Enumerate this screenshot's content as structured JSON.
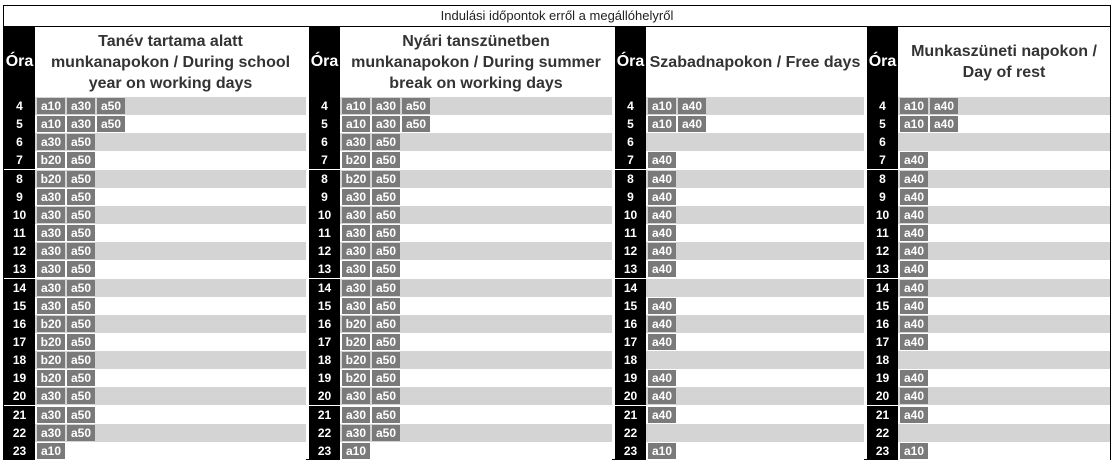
{
  "caption": "Indulási időpontok erről a megállóhelyről",
  "hour_label": "Óra",
  "sections": [
    {
      "title": "Tanév tartama alatt munkanapokon / During school year on working days",
      "rows": [
        {
          "hour": "4",
          "deps": [
            "a10",
            "a30",
            "a50"
          ]
        },
        {
          "hour": "5",
          "deps": [
            "a10",
            "a30",
            "a50"
          ]
        },
        {
          "hour": "6",
          "deps": [
            "a30",
            "a50"
          ]
        },
        {
          "hour": "7",
          "deps": [
            "b20",
            "a50"
          ]
        },
        {
          "hour": "8",
          "deps": [
            "b20",
            "a50"
          ]
        },
        {
          "hour": "9",
          "deps": [
            "a30",
            "a50"
          ]
        },
        {
          "hour": "10",
          "deps": [
            "a30",
            "a50"
          ]
        },
        {
          "hour": "11",
          "deps": [
            "a30",
            "a50"
          ]
        },
        {
          "hour": "12",
          "deps": [
            "a30",
            "a50"
          ]
        },
        {
          "hour": "13",
          "deps": [
            "a30",
            "a50"
          ]
        },
        {
          "hour": "14",
          "deps": [
            "a30",
            "a50"
          ]
        },
        {
          "hour": "15",
          "deps": [
            "a30",
            "a50"
          ]
        },
        {
          "hour": "16",
          "deps": [
            "b20",
            "a50"
          ]
        },
        {
          "hour": "17",
          "deps": [
            "b20",
            "a50"
          ]
        },
        {
          "hour": "18",
          "deps": [
            "b20",
            "a50"
          ]
        },
        {
          "hour": "19",
          "deps": [
            "b20",
            "a50"
          ]
        },
        {
          "hour": "20",
          "deps": [
            "a30",
            "a50"
          ]
        },
        {
          "hour": "21",
          "deps": [
            "a30",
            "a50"
          ]
        },
        {
          "hour": "22",
          "deps": [
            "a30",
            "a50"
          ]
        },
        {
          "hour": "23",
          "deps": [
            "a10"
          ]
        }
      ]
    },
    {
      "title": "Nyári tanszünetben munkanapokon / During summer break on working days",
      "rows": [
        {
          "hour": "4",
          "deps": [
            "a10",
            "a30",
            "a50"
          ]
        },
        {
          "hour": "5",
          "deps": [
            "a10",
            "a30",
            "a50"
          ]
        },
        {
          "hour": "6",
          "deps": [
            "a30",
            "a50"
          ]
        },
        {
          "hour": "7",
          "deps": [
            "b20",
            "a50"
          ]
        },
        {
          "hour": "8",
          "deps": [
            "b20",
            "a50"
          ]
        },
        {
          "hour": "9",
          "deps": [
            "a30",
            "a50"
          ]
        },
        {
          "hour": "10",
          "deps": [
            "a30",
            "a50"
          ]
        },
        {
          "hour": "11",
          "deps": [
            "a30",
            "a50"
          ]
        },
        {
          "hour": "12",
          "deps": [
            "a30",
            "a50"
          ]
        },
        {
          "hour": "13",
          "deps": [
            "a30",
            "a50"
          ]
        },
        {
          "hour": "14",
          "deps": [
            "a30",
            "a50"
          ]
        },
        {
          "hour": "15",
          "deps": [
            "a30",
            "a50"
          ]
        },
        {
          "hour": "16",
          "deps": [
            "b20",
            "a50"
          ]
        },
        {
          "hour": "17",
          "deps": [
            "b20",
            "a50"
          ]
        },
        {
          "hour": "18",
          "deps": [
            "b20",
            "a50"
          ]
        },
        {
          "hour": "19",
          "deps": [
            "b20",
            "a50"
          ]
        },
        {
          "hour": "20",
          "deps": [
            "a30",
            "a50"
          ]
        },
        {
          "hour": "21",
          "deps": [
            "a30",
            "a50"
          ]
        },
        {
          "hour": "22",
          "deps": [
            "a30",
            "a50"
          ]
        },
        {
          "hour": "23",
          "deps": [
            "a10"
          ]
        }
      ]
    },
    {
      "title": "Szabadnapokon / Free days",
      "rows": [
        {
          "hour": "4",
          "deps": [
            "a10",
            "a40"
          ]
        },
        {
          "hour": "5",
          "deps": [
            "a10",
            "a40"
          ]
        },
        {
          "hour": "6",
          "deps": []
        },
        {
          "hour": "7",
          "deps": [
            "a40"
          ]
        },
        {
          "hour": "8",
          "deps": [
            "a40"
          ]
        },
        {
          "hour": "9",
          "deps": [
            "a40"
          ]
        },
        {
          "hour": "10",
          "deps": [
            "a40"
          ]
        },
        {
          "hour": "11",
          "deps": [
            "a40"
          ]
        },
        {
          "hour": "12",
          "deps": [
            "a40"
          ]
        },
        {
          "hour": "13",
          "deps": [
            "a40"
          ]
        },
        {
          "hour": "14",
          "deps": []
        },
        {
          "hour": "15",
          "deps": [
            "a40"
          ]
        },
        {
          "hour": "16",
          "deps": [
            "a40"
          ]
        },
        {
          "hour": "17",
          "deps": [
            "a40"
          ]
        },
        {
          "hour": "18",
          "deps": []
        },
        {
          "hour": "19",
          "deps": [
            "a40"
          ]
        },
        {
          "hour": "20",
          "deps": [
            "a40"
          ]
        },
        {
          "hour": "21",
          "deps": [
            "a40"
          ]
        },
        {
          "hour": "22",
          "deps": []
        },
        {
          "hour": "23",
          "deps": [
            "a10"
          ]
        }
      ]
    },
    {
      "title": "Munkaszüneti napokon / Day of rest",
      "rows": [
        {
          "hour": "4",
          "deps": [
            "a10",
            "a40"
          ]
        },
        {
          "hour": "5",
          "deps": [
            "a10",
            "a40"
          ]
        },
        {
          "hour": "6",
          "deps": []
        },
        {
          "hour": "7",
          "deps": [
            "a40"
          ]
        },
        {
          "hour": "8",
          "deps": [
            "a40"
          ]
        },
        {
          "hour": "9",
          "deps": [
            "a40"
          ]
        },
        {
          "hour": "10",
          "deps": [
            "a40"
          ]
        },
        {
          "hour": "11",
          "deps": [
            "a40"
          ]
        },
        {
          "hour": "12",
          "deps": [
            "a40"
          ]
        },
        {
          "hour": "13",
          "deps": [
            "a40"
          ]
        },
        {
          "hour": "14",
          "deps": [
            "a40"
          ]
        },
        {
          "hour": "15",
          "deps": [
            "a40"
          ]
        },
        {
          "hour": "16",
          "deps": [
            "a40"
          ]
        },
        {
          "hour": "17",
          "deps": [
            "a40"
          ]
        },
        {
          "hour": "18",
          "deps": []
        },
        {
          "hour": "19",
          "deps": [
            "a40"
          ]
        },
        {
          "hour": "20",
          "deps": [
            "a40"
          ]
        },
        {
          "hour": "21",
          "deps": [
            "a40"
          ]
        },
        {
          "hour": "22",
          "deps": []
        },
        {
          "hour": "23",
          "deps": [
            "a10"
          ]
        }
      ]
    }
  ]
}
